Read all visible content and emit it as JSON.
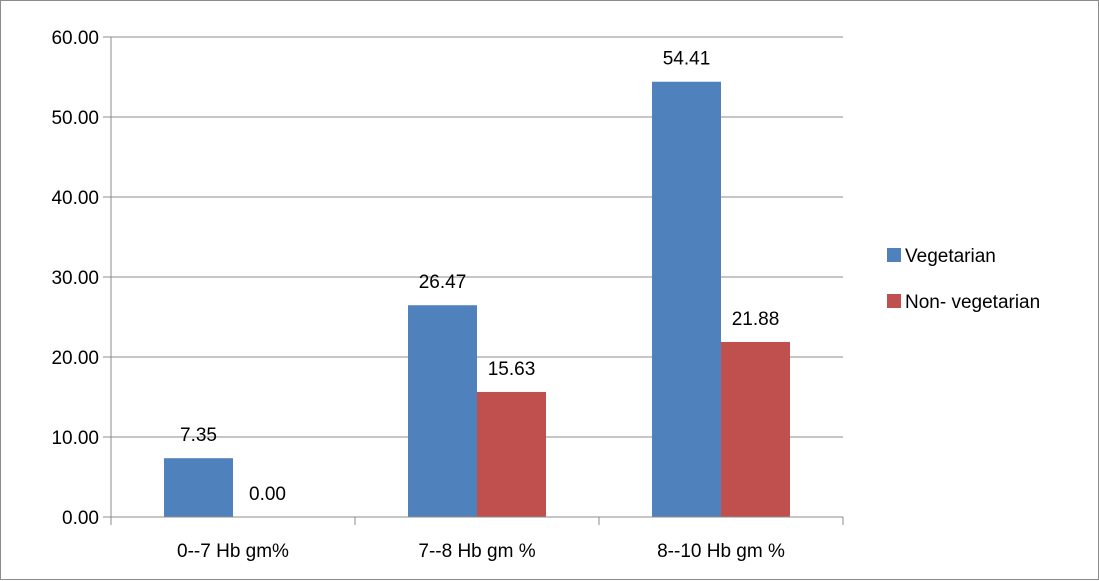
{
  "chart_data": {
    "type": "bar",
    "categories": [
      "0--7 Hb gm%",
      "7--8 Hb gm %",
      "8--10 Hb gm %"
    ],
    "series": [
      {
        "name": "Vegetarian",
        "values": [
          7.35,
          26.47,
          54.41
        ],
        "labels": [
          "7.35",
          "26.47",
          "54.41"
        ],
        "color": "#4f81bd"
      },
      {
        "name": "Non- vegetarian",
        "values": [
          0.0,
          15.63,
          21.88
        ],
        "labels": [
          "0.00",
          "15.63",
          "21.88"
        ],
        "color": "#c0504d"
      }
    ],
    "yticks": [
      "0.00",
      "10.00",
      "20.00",
      "30.00",
      "40.00",
      "50.00",
      "60.00"
    ],
    "ylim": [
      0,
      60
    ],
    "grid": true,
    "legend_position": "right",
    "title": "",
    "xlabel": "",
    "ylabel": ""
  }
}
